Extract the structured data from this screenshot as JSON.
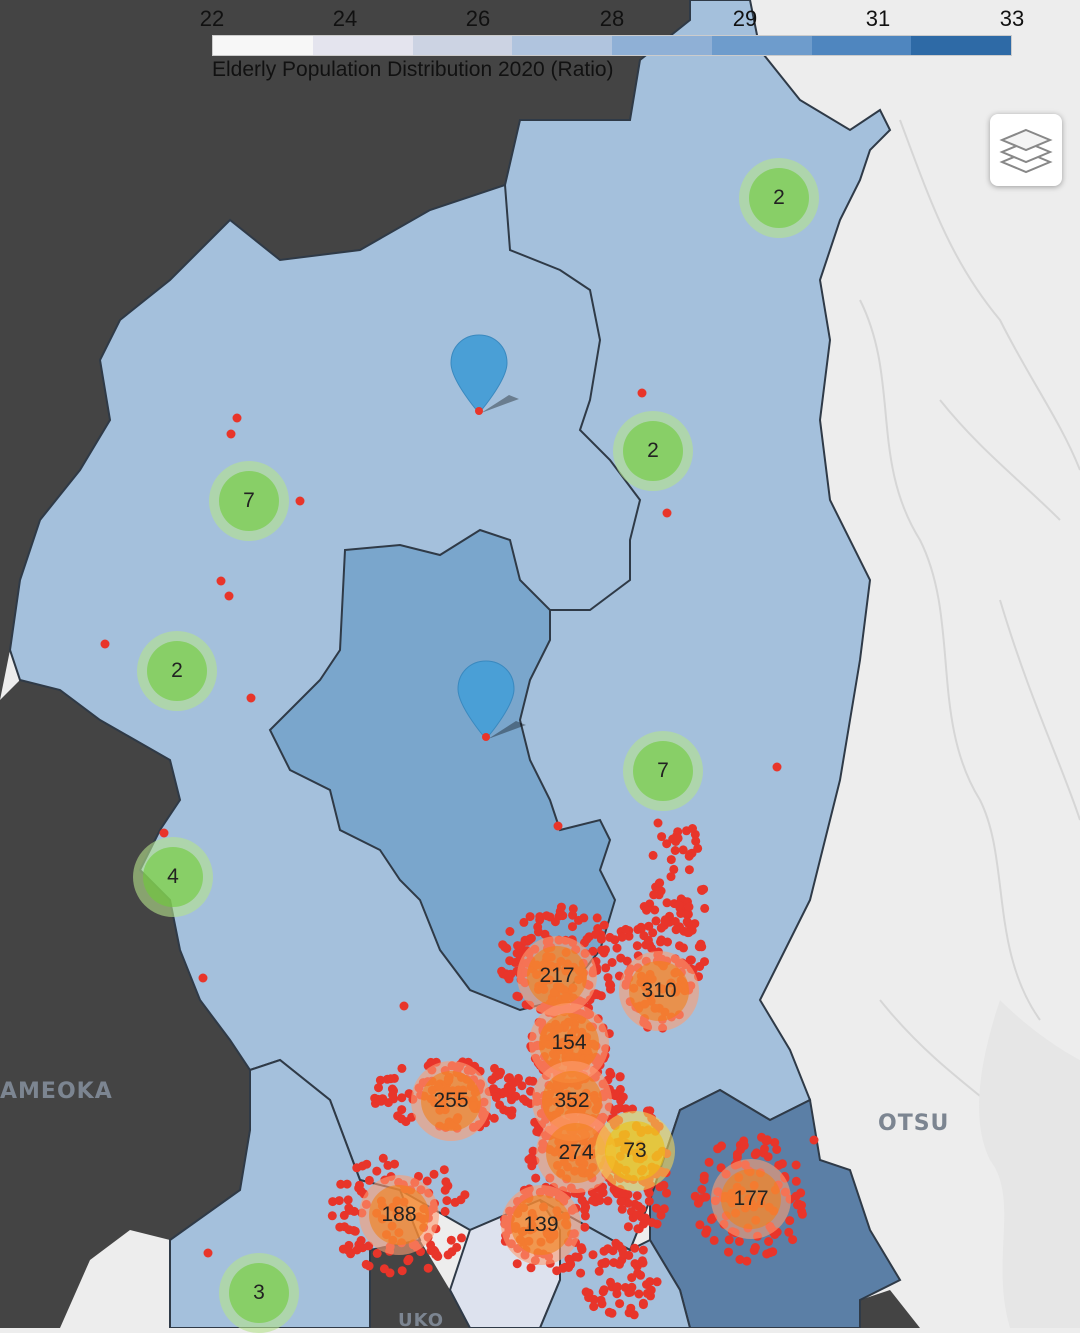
{
  "legend": {
    "ticks": [
      "22",
      "24",
      "26",
      "28",
      "29",
      "31",
      "33"
    ],
    "caption": "Elderly Population Distribution 2020 (Ratio)",
    "colors": [
      "#f7f7f7",
      "#e4e4ee",
      "#ccd3e3",
      "#b0c4de",
      "#8fb0d6",
      "#6e9ccc",
      "#4f86bf",
      "#2e6aa6"
    ]
  },
  "map": {
    "place_labels": [
      "AMEOKA",
      "OTSU",
      "UKO"
    ],
    "region_colors": {
      "outside_dark": "#444444",
      "base_light": "#ededed",
      "ward_light": "#a4c0dc",
      "ward_mid": "#7aa6cc",
      "ward_dark": "#5b7fa6",
      "ward_pale": "#dde2ee"
    },
    "marker_color": "#e8352a",
    "pin_color": "#4a9fd6"
  },
  "clusters": [
    {
      "count": "2",
      "size": "small"
    },
    {
      "count": "2",
      "size": "small"
    },
    {
      "count": "7",
      "size": "small"
    },
    {
      "count": "2",
      "size": "small"
    },
    {
      "count": "7",
      "size": "small"
    },
    {
      "count": "4",
      "size": "small"
    },
    {
      "count": "217",
      "size": "large"
    },
    {
      "count": "310",
      "size": "large"
    },
    {
      "count": "154",
      "size": "large"
    },
    {
      "count": "255",
      "size": "large"
    },
    {
      "count": "352",
      "size": "large"
    },
    {
      "count": "274",
      "size": "large"
    },
    {
      "count": "73",
      "size": "medium"
    },
    {
      "count": "177",
      "size": "large"
    },
    {
      "count": "188",
      "size": "large"
    },
    {
      "count": "139",
      "size": "large"
    },
    {
      "count": "3",
      "size": "small"
    }
  ],
  "controls": {
    "layers_icon": "layers-icon"
  }
}
